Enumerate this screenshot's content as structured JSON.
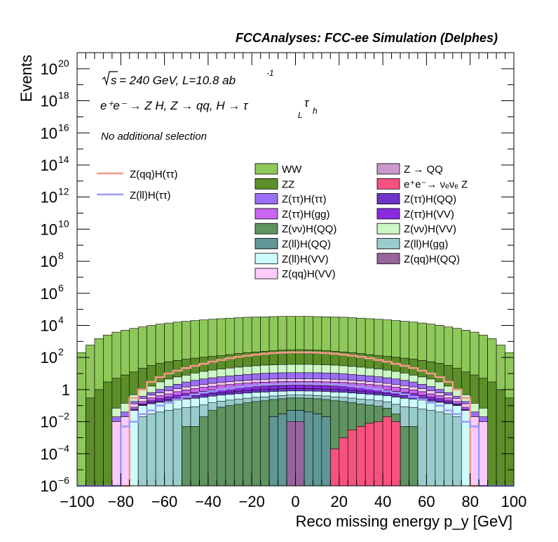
{
  "chart_data": {
    "type": "histogram-stacked",
    "title": "FCCAnalyses: FCC-ee Simulation (Delphes)",
    "xlabel": "Reco missing energy p_y [GeV]",
    "ylabel": "Events",
    "xlim": [
      -100,
      100
    ],
    "ylim": [
      1e-06,
      1e+21
    ],
    "yscale": "log",
    "x_ticks": [
      "−100",
      "−80",
      "−60",
      "−40",
      "−20",
      "0",
      "20",
      "40",
      "60",
      "80",
      "100"
    ],
    "y_ticks": [
      {
        "base": "10",
        "exp": "−6"
      },
      {
        "base": "10",
        "exp": "−4"
      },
      {
        "base": "10",
        "exp": "−2"
      },
      {
        "base": "1",
        "exp": ""
      },
      {
        "base": "10",
        "exp": "2"
      },
      {
        "base": "10",
        "exp": "4"
      },
      {
        "base": "10",
        "exp": "6"
      },
      {
        "base": "10",
        "exp": "8"
      },
      {
        "base": "10",
        "exp": "10"
      },
      {
        "base": "10",
        "exp": "12"
      },
      {
        "base": "10",
        "exp": "14"
      },
      {
        "base": "10",
        "exp": "16"
      },
      {
        "base": "10",
        "exp": "18"
      },
      {
        "base": "10",
        "exp": "20"
      }
    ],
    "annotations": {
      "energy_lumi": "= 240 GeV, L=10.8 ab",
      "lumi_exp": "-1",
      "process": "e⁺e⁻ → Z H, Z → qq, H → τ",
      "process_sub1": "L",
      "process_sub2": "h",
      "selection": "No additional selection"
    },
    "legend_signal": [
      {
        "name": "Z(qq)H(ττ)",
        "color": "#f5978b"
      },
      {
        "name": "Z(ll)H(ττ)",
        "color": "#9a9af5"
      }
    ],
    "legend_bkg": [
      {
        "name": "WW",
        "color": "#8ec85a"
      },
      {
        "name": "Z → QQ",
        "color": "#cc99cc"
      },
      {
        "name": "ZZ",
        "color": "#5c8f2a"
      },
      {
        "name": "e⁺e⁻→ νₑνₑ Z",
        "color": "#f7527f"
      },
      {
        "name": "Z(ττ)H(ττ)",
        "color": "#9b6ef5"
      },
      {
        "name": "Z(ττ)H(QQ)",
        "color": "#6d35c8"
      },
      {
        "name": "Z(ττ)H(gg)",
        "color": "#c766f0"
      },
      {
        "name": "Z(ττ)H(VV)",
        "color": "#8a2be2"
      },
      {
        "name": "Z(νν)H(QQ)",
        "color": "#5f9360"
      },
      {
        "name": "Z(νν)H(VV)",
        "color": "#cdf7c6"
      },
      {
        "name": "Z(ll)H(QQ)",
        "color": "#5f9696"
      },
      {
        "name": "Z(ll)H(gg)",
        "color": "#99cccc"
      },
      {
        "name": "Z(ll)H(VV)",
        "color": "#ccfcfc"
      },
      {
        "name": "Z(qq)H(QQ)",
        "color": "#96659b"
      },
      {
        "name": "Z(qq)H(VV)",
        "color": "#fbcbfb"
      }
    ],
    "bins_x": [
      -100,
      -96,
      -92,
      -88,
      -84,
      -80,
      -76,
      -72,
      -68,
      -64,
      -60,
      -56,
      -52,
      -48,
      -44,
      -40,
      -36,
      -32,
      -28,
      -24,
      -20,
      -16,
      -12,
      -8,
      -4,
      0,
      4,
      8,
      12,
      16,
      20,
      24,
      28,
      32,
      36,
      40,
      44,
      48,
      52,
      56,
      60,
      64,
      68,
      72,
      76,
      80,
      84,
      88,
      92,
      96,
      100
    ],
    "series": [
      {
        "name": "WW",
        "color": "#8ec85a",
        "values": [
          200,
          600,
          1500,
          2500,
          3800,
          5000,
          6500,
          8000,
          10000,
          12000,
          14000,
          16000,
          18000,
          20000,
          22000,
          24000,
          26000,
          28000,
          30000,
          32000,
          33000,
          34000,
          35000,
          36000,
          36000,
          36000,
          36000,
          35000,
          34000,
          33000,
          32000,
          30000,
          28000,
          26000,
          24000,
          22000,
          20000,
          18000,
          16000,
          14000,
          12000,
          10000,
          8000,
          6500,
          5000,
          3800,
          2500,
          1500,
          600,
          200
        ]
      },
      {
        "name": "ZZ",
        "color": "#5c8f2a",
        "values": [
          1e-06,
          0.3,
          1,
          3,
          5,
          8,
          12,
          20,
          30,
          40,
          50,
          60,
          70,
          80,
          90,
          100,
          110,
          130,
          150,
          170,
          190,
          210,
          230,
          250,
          260,
          270,
          260,
          250,
          230,
          210,
          190,
          170,
          150,
          130,
          110,
          100,
          90,
          80,
          70,
          60,
          50,
          40,
          30,
          20,
          12,
          8,
          5,
          3,
          1,
          0.3
        ]
      },
      {
        "name": "Z(νν)H(VV)",
        "color": "#cdf7c6",
        "values": [
          0,
          0,
          0,
          0,
          0.05,
          0.1,
          0.3,
          0.6,
          1,
          2,
          3,
          4,
          5,
          7,
          9,
          11,
          13,
          15,
          17,
          19,
          21,
          23,
          24,
          25,
          26,
          26,
          26,
          25,
          24,
          23,
          21,
          19,
          17,
          15,
          13,
          11,
          9,
          7,
          5,
          4,
          3,
          2,
          1,
          0.6,
          0.3,
          0.1,
          0.05,
          0,
          0,
          0
        ]
      },
      {
        "name": "Z(ττ)H(ττ)",
        "color": "#9b6ef5",
        "values": [
          0,
          0,
          0,
          0,
          0.01,
          0.02,
          0.05,
          0.1,
          0.2,
          0.4,
          0.7,
          1,
          1.5,
          2,
          2.5,
          3,
          3.5,
          4,
          4.5,
          5,
          5.5,
          6,
          6.3,
          6.5,
          6.6,
          6.6,
          6.6,
          6.5,
          6.3,
          6,
          5.5,
          5,
          4.5,
          4,
          3.5,
          3,
          2.5,
          2,
          1.5,
          1,
          0.7,
          0.4,
          0.2,
          0.1,
          0.05,
          0.02,
          0.01,
          0,
          0,
          0
        ]
      },
      {
        "name": "Z(qq)H(VV)",
        "color": "#fbcbfb",
        "values": [
          0,
          0,
          0,
          0,
          0.01,
          0.02,
          0.05,
          0.1,
          0.15,
          0.2,
          0.3,
          0.4,
          0.5,
          0.6,
          0.7,
          0.8,
          0.9,
          1,
          1.1,
          1.2,
          1.3,
          1.4,
          1.5,
          1.5,
          1.5,
          1.5,
          1.5,
          1.5,
          1.5,
          1.4,
          1.3,
          1.2,
          1.1,
          1,
          0.9,
          0.8,
          0.7,
          0.6,
          0.5,
          0.4,
          0.3,
          0.2,
          0.15,
          0.1,
          0.05,
          0.02,
          0.01,
          0,
          0,
          0
        ]
      },
      {
        "name": "Z(ττ)H(gg)",
        "color": "#c766f0",
        "values": [
          0,
          0,
          0,
          0,
          0,
          0,
          0.02,
          0.05,
          0.1,
          0.15,
          0.2,
          0.3,
          0.4,
          0.5,
          0.6,
          0.7,
          0.8,
          0.9,
          1,
          1.1,
          1.2,
          1.3,
          1.3,
          1.4,
          1.4,
          1.4,
          1.4,
          1.4,
          1.3,
          1.3,
          1.2,
          1.1,
          1,
          0.9,
          0.8,
          0.7,
          0.6,
          0.5,
          0.4,
          0.3,
          0.2,
          0.15,
          0.1,
          0.05,
          0.02,
          0,
          0,
          0,
          0,
          0
        ]
      },
      {
        "name": "Z(ττ)H(VV)",
        "color": "#8a2be2",
        "values": [
          0,
          0,
          0,
          0,
          0,
          0,
          0.01,
          0.02,
          0.05,
          0.08,
          0.1,
          0.15,
          0.2,
          0.25,
          0.3,
          0.35,
          0.4,
          0.45,
          0.5,
          0.55,
          0.6,
          0.62,
          0.65,
          0.66,
          0.67,
          0.67,
          0.67,
          0.66,
          0.65,
          0.62,
          0.6,
          0.55,
          0.5,
          0.45,
          0.4,
          0.35,
          0.3,
          0.25,
          0.2,
          0.15,
          0.1,
          0.08,
          0.05,
          0.02,
          0.01,
          0,
          0,
          0,
          0,
          0
        ]
      },
      {
        "name": "Z(ττ)H(QQ)",
        "color": "#6d35c8",
        "values": [
          0,
          0,
          0,
          0,
          0,
          0,
          0,
          0.01,
          0.02,
          0.03,
          0.05,
          0.07,
          0.1,
          0.12,
          0.15,
          0.18,
          0.2,
          0.22,
          0.25,
          0.27,
          0.3,
          0.31,
          0.32,
          0.33,
          0.33,
          0.33,
          0.33,
          0.33,
          0.32,
          0.31,
          0.3,
          0.27,
          0.25,
          0.22,
          0.2,
          0.18,
          0.15,
          0.12,
          0.1,
          0.07,
          0.05,
          0.03,
          0.02,
          0.01,
          0,
          0,
          0,
          0,
          0,
          0
        ]
      },
      {
        "name": "Z(ll)H(VV)",
        "color": "#ccfcfc",
        "values": [
          0,
          0,
          0,
          0,
          0,
          0,
          0.05,
          0.08,
          0.1,
          0.12,
          0.14,
          0.16,
          0.18,
          0.2,
          0.22,
          0.24,
          0.26,
          0.28,
          0.3,
          0.32,
          0.34,
          0.35,
          0.36,
          0.36,
          0.36,
          0.36,
          0.36,
          0.36,
          0.36,
          0.35,
          0.34,
          0.32,
          0.3,
          0.28,
          0.26,
          0.24,
          0.22,
          0.2,
          0.18,
          0.16,
          0.14,
          0.12,
          0.1,
          0.08,
          0.05,
          0,
          0,
          0,
          0,
          0
        ]
      },
      {
        "name": "Z(ll)H(gg)",
        "color": "#99cccc",
        "values": [
          0,
          0,
          0,
          0,
          0,
          0,
          0,
          0.02,
          0.03,
          0.04,
          0.05,
          0.06,
          0.07,
          0.08,
          0.09,
          0.1,
          0.11,
          0.12,
          0.13,
          0.14,
          0.15,
          0.15,
          0.16,
          0.16,
          0.16,
          0.16,
          0.16,
          0.16,
          0.16,
          0.15,
          0.15,
          0.14,
          0.13,
          0.12,
          0.11,
          0.1,
          0.09,
          0.08,
          0.07,
          0.06,
          0.05,
          0.04,
          0.03,
          0.02,
          0,
          0,
          0,
          0,
          0,
          0
        ]
      },
      {
        "name": "Z(νν)H(QQ)",
        "color": "#5f9360",
        "values": [
          0,
          0,
          0,
          0,
          0,
          0,
          0,
          0,
          0,
          0,
          0,
          0,
          0.005,
          0.005,
          0.02,
          0.05,
          0.08,
          0.1,
          0.12,
          0.15,
          0.18,
          0.2,
          0.22,
          0.24,
          0.25,
          0.25,
          0.25,
          0.24,
          0.22,
          0.2,
          0.18,
          0.15,
          0.12,
          0.1,
          0.08,
          0.05,
          0.02,
          0.005,
          0.005,
          0,
          0,
          0,
          0,
          0,
          0,
          0,
          0,
          0,
          0,
          0
        ]
      },
      {
        "name": "e⁺e⁻→ νₑνₑ Z",
        "color": "#f7527f",
        "values": [
          0,
          0,
          0,
          0,
          0,
          0,
          0,
          0,
          0,
          0,
          0,
          0,
          0,
          0,
          0,
          0,
          0,
          0,
          0,
          0,
          0,
          0,
          0,
          0,
          0,
          0,
          0,
          0,
          5e-05,
          0.0002,
          0.001,
          0.003,
          0.005,
          0.008,
          0.01,
          0.02,
          0.01,
          0,
          0,
          0,
          0,
          0,
          0,
          0,
          0,
          0,
          0,
          0,
          0,
          0
        ]
      },
      {
        "name": "Z(ll)H(QQ)",
        "color": "#5f9696",
        "values": [
          0,
          0,
          0,
          0,
          0,
          0,
          0,
          0,
          0,
          0,
          0,
          0,
          0,
          0,
          0,
          0,
          0,
          0,
          0,
          0,
          0,
          0,
          0.02,
          0.03,
          0.04,
          0.04,
          0.04,
          0.03,
          0.02,
          0,
          0,
          0,
          0,
          0,
          0,
          0,
          0,
          0,
          0,
          0,
          0,
          0,
          0,
          0,
          0,
          0,
          0,
          0,
          0,
          0
        ]
      },
      {
        "name": "Z(qq)H(QQ)",
        "color": "#96659b",
        "values": [
          0,
          0,
          0,
          0,
          0,
          0,
          0,
          0,
          0,
          0,
          0,
          0,
          0,
          0,
          0,
          0,
          0,
          0,
          0,
          0,
          0,
          0,
          0,
          0,
          0.01,
          0.01,
          0,
          0,
          0,
          0,
          0,
          0,
          0,
          0,
          0,
          0,
          0,
          0,
          0,
          0,
          0,
          0,
          0,
          0,
          0,
          0,
          0,
          0,
          0,
          0
        ]
      }
    ],
    "signals": [
      {
        "name": "Z(qq)H(ττ)",
        "color": "#f5978b",
        "values": [
          0,
          0,
          0,
          0,
          0,
          1e-06,
          0.3,
          1,
          3,
          6,
          10,
          15,
          22,
          30,
          40,
          55,
          70,
          90,
          110,
          130,
          150,
          170,
          190,
          200,
          210,
          210,
          210,
          200,
          190,
          170,
          150,
          130,
          110,
          90,
          70,
          55,
          40,
          30,
          22,
          15,
          10,
          6,
          3,
          1,
          0.3,
          1e-06,
          0,
          0,
          0,
          0
        ]
      },
      {
        "name": "Z(ll)H(ττ)",
        "color": "#9a9af5",
        "values": [
          0,
          0,
          0,
          0,
          0,
          0.005,
          0.01,
          0.03,
          0.05,
          0.1,
          0.15,
          0.25,
          0.35,
          0.5,
          0.65,
          0.8,
          1,
          1.2,
          1.4,
          1.6,
          1.8,
          2,
          2.1,
          2.2,
          2.3,
          2.3,
          2.3,
          2.2,
          2.1,
          2,
          1.8,
          1.6,
          1.4,
          1.2,
          1,
          0.8,
          0.65,
          0.5,
          0.35,
          0.25,
          0.15,
          0.1,
          0.05,
          0.03,
          0.01,
          0.005,
          0,
          0,
          0,
          0
        ]
      }
    ]
  }
}
